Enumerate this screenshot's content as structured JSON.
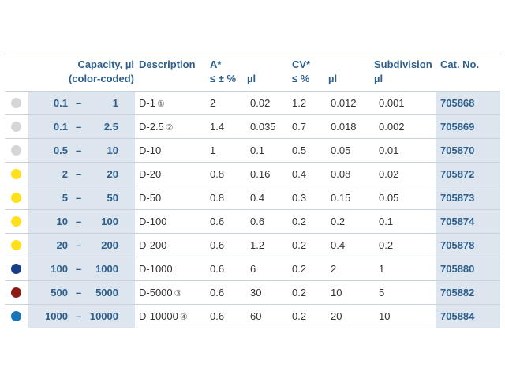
{
  "header": {
    "capacity": "Capacity, µl",
    "capacity_sub": "(color-coded)",
    "description": "Description",
    "a": "A*",
    "a_pct": "≤ ± %",
    "a_ul": "µl",
    "cv": "CV*",
    "cv_pct": "≤ %",
    "cv_ul": "µl",
    "subdivision": "Subdivision",
    "subdivision_ul": "µl",
    "cat": "Cat. No."
  },
  "colors": {
    "light_gray": "#d6d6d6",
    "yellow": "#ffe01a",
    "dark_blue": "#153e86",
    "dark_red": "#8c1b14",
    "blue": "#1a76b8"
  },
  "rows": [
    {
      "color": "#d6d6d6",
      "lo": "0.1",
      "dash": "–",
      "hi": "1",
      "desc": "D-1",
      "note": "①",
      "a_pct": "2",
      "a_ul": "0.02",
      "cv_pct": "1.2",
      "cv_ul": "0.012",
      "sub": "0.001",
      "cat": "705868"
    },
    {
      "color": "#d6d6d6",
      "lo": "0.1",
      "dash": "–",
      "hi": "2.5",
      "desc": "D-2.5",
      "note": "②",
      "a_pct": "1.4",
      "a_ul": "0.035",
      "cv_pct": "0.7",
      "cv_ul": "0.018",
      "sub": "0.002",
      "cat": "705869"
    },
    {
      "color": "#d6d6d6",
      "lo": "0.5",
      "dash": "–",
      "hi": "10",
      "desc": "D-10",
      "note": "",
      "a_pct": "1",
      "a_ul": "0.1",
      "cv_pct": "0.5",
      "cv_ul": "0.05",
      "sub": "0.01",
      "cat": "705870"
    },
    {
      "color": "#ffe01a",
      "lo": "2",
      "dash": "–",
      "hi": "20",
      "desc": "D-20",
      "note": "",
      "a_pct": "0.8",
      "a_ul": "0.16",
      "cv_pct": "0.4",
      "cv_ul": "0.08",
      "sub": "0.02",
      "cat": "705872"
    },
    {
      "color": "#ffe01a",
      "lo": "5",
      "dash": "–",
      "hi": "50",
      "desc": "D-50",
      "note": "",
      "a_pct": "0.8",
      "a_ul": "0.4",
      "cv_pct": "0.3",
      "cv_ul": "0.15",
      "sub": "0.05",
      "cat": "705873"
    },
    {
      "color": "#ffe01a",
      "lo": "10",
      "dash": "–",
      "hi": "100",
      "desc": "D-100",
      "note": "",
      "a_pct": "0.6",
      "a_ul": "0.6",
      "cv_pct": "0.2",
      "cv_ul": "0.2",
      "sub": "0.1",
      "cat": "705874"
    },
    {
      "color": "#ffe01a",
      "lo": "20",
      "dash": "–",
      "hi": "200",
      "desc": "D-200",
      "note": "",
      "a_pct": "0.6",
      "a_ul": "1.2",
      "cv_pct": "0.2",
      "cv_ul": "0.4",
      "sub": "0.2",
      "cat": "705878"
    },
    {
      "color": "#153e86",
      "lo": "100",
      "dash": "–",
      "hi": "1000",
      "desc": "D-1000",
      "note": "",
      "a_pct": "0.6",
      "a_ul": "6",
      "cv_pct": "0.2",
      "cv_ul": "2",
      "sub": "1",
      "cat": "705880"
    },
    {
      "color": "#8c1b14",
      "lo": "500",
      "dash": "–",
      "hi": "5000",
      "desc": "D-5000",
      "note": "③",
      "a_pct": "0.6",
      "a_ul": "30",
      "cv_pct": "0.2",
      "cv_ul": "10",
      "sub": "5",
      "cat": "705882"
    },
    {
      "color": "#1a76b8",
      "lo": "1000",
      "dash": "–",
      "hi": "10000",
      "desc": "D-10000",
      "note": "④",
      "a_pct": "0.6",
      "a_ul": "60",
      "cv_pct": "0.2",
      "cv_ul": "20",
      "sub": "10",
      "cat": "705884"
    }
  ]
}
